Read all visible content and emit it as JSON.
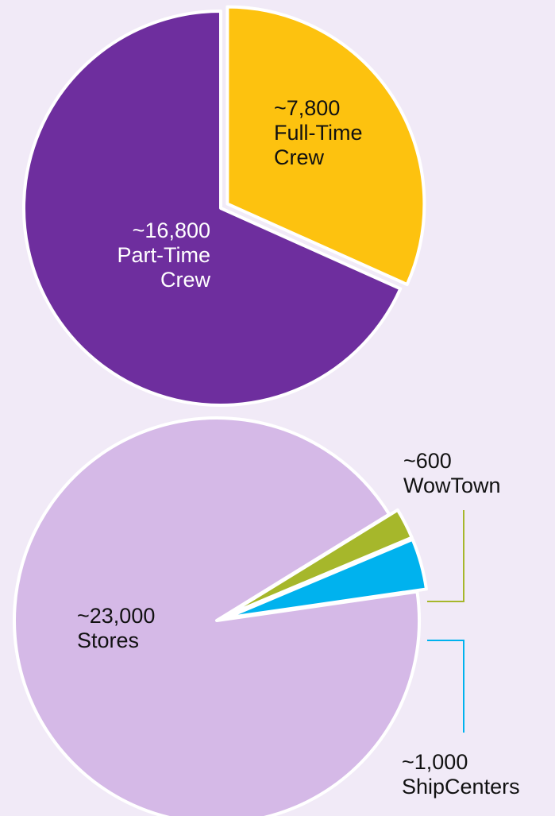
{
  "chart_data": [
    {
      "type": "pie",
      "slices": [
        {
          "value": 7800,
          "label_lines": [
            "~7,800",
            "Full-Time",
            "Crew"
          ],
          "color": "#fdc20f",
          "exploded": true
        },
        {
          "value": 16800,
          "label_lines": [
            "~16,800",
            "Part-Time",
            "Crew"
          ],
          "color": "#6e2e9e",
          "exploded": false
        }
      ]
    },
    {
      "type": "pie",
      "slices": [
        {
          "value": 23000,
          "label_lines": [
            "~23,000",
            "Stores"
          ],
          "color": "#d5b9e7",
          "exploded": false
        },
        {
          "value": 600,
          "label_lines": [
            "~600",
            "WowTown"
          ],
          "color": "#a6b72b",
          "exploded": true
        },
        {
          "value": 1000,
          "label_lines": [
            "~1,000",
            "ShipCenters"
          ],
          "color": "#00b2ee",
          "exploded": true
        }
      ]
    }
  ],
  "colors": {
    "background": "#f1eaf7",
    "slice_stroke": "#ffffff"
  }
}
